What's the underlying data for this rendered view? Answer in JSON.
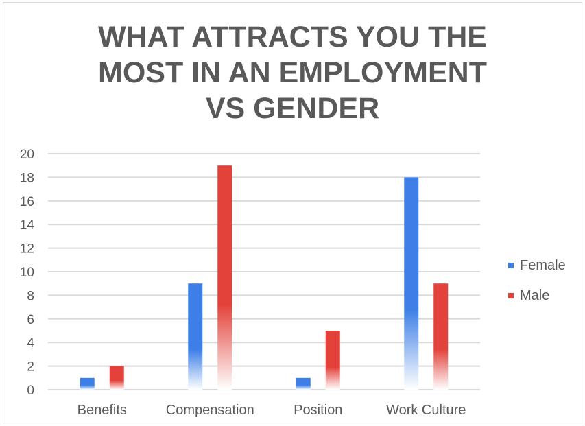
{
  "chart_data": {
    "type": "bar",
    "title": "WHAT ATTRACTS YOU THE MOST IN AN EMPLOYMENT VS GENDER",
    "title_lines": [
      "WHAT ATTRACTS YOU THE",
      "MOST IN AN EMPLOYMENT",
      "VS GENDER"
    ],
    "categories": [
      "Benefits",
      "Compensation",
      "Position",
      "Work Culture"
    ],
    "series": [
      {
        "name": "Female",
        "values": [
          1,
          9,
          1,
          18
        ],
        "color": "#3d7fe6"
      },
      {
        "name": "Male",
        "values": [
          2,
          19,
          5,
          9
        ],
        "color": "#e3423a"
      }
    ],
    "ylim": [
      0,
      20
    ],
    "yticks": [
      "0",
      "2",
      "4",
      "6",
      "8",
      "10",
      "12",
      "14",
      "16",
      "18",
      "20"
    ],
    "grid": true,
    "legend_position": "right"
  }
}
